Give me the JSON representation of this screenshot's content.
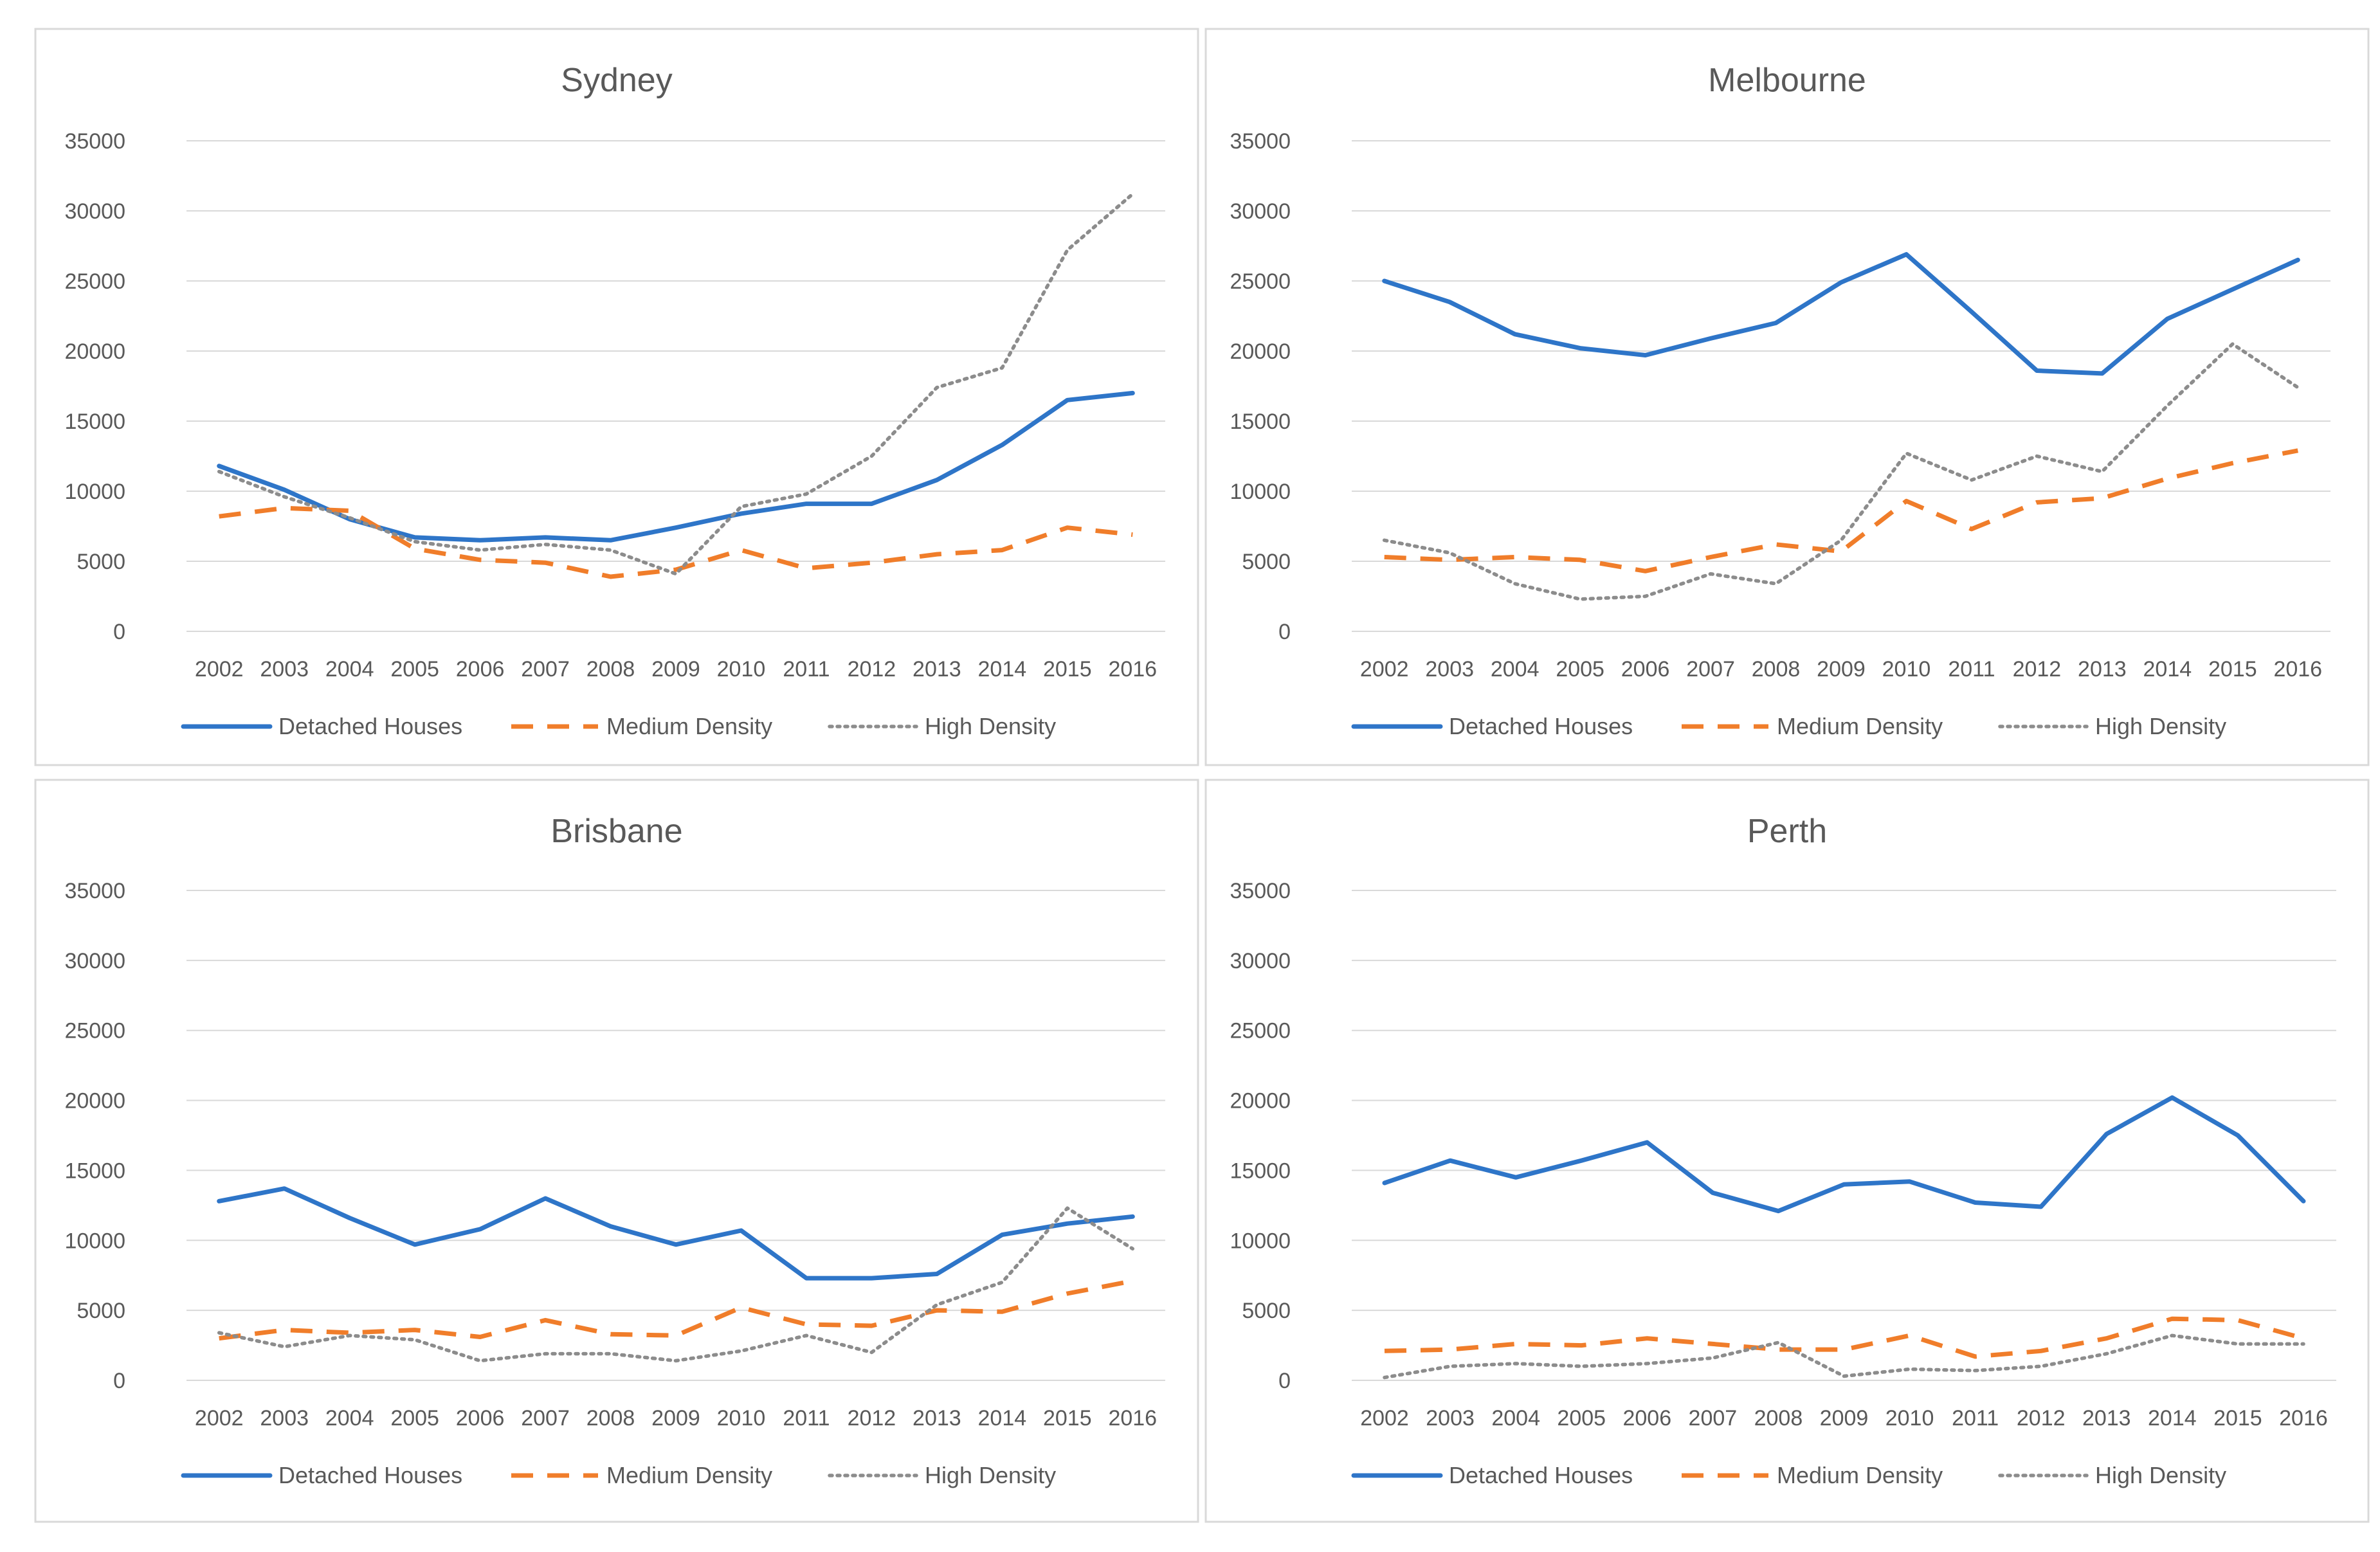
{
  "colors": {
    "detached": "#2e75c8",
    "medium": "#f07d2a",
    "high": "#8c8c8c"
  },
  "chart_data": [
    {
      "type": "line",
      "title": "Sydney",
      "categories": [
        "2002",
        "2003",
        "2004",
        "2005",
        "2006",
        "2007",
        "2008",
        "2009",
        "2010",
        "2011",
        "2012",
        "2013",
        "2014",
        "2015",
        "2016"
      ],
      "yticks": [
        "0",
        "5000",
        "10000",
        "15000",
        "20000",
        "25000",
        "30000",
        "35000"
      ],
      "ylim": [
        0,
        35000
      ],
      "legend_position": "bottom",
      "series": [
        {
          "name": "Detached Houses",
          "values": [
            11800,
            10100,
            8000,
            6700,
            6500,
            6700,
            6500,
            7400,
            8400,
            9100,
            9100,
            10800,
            13300,
            16500,
            17000
          ]
        },
        {
          "name": "Medium Density",
          "values": [
            8200,
            8800,
            8600,
            5900,
            5100,
            4900,
            3900,
            4400,
            5800,
            4500,
            4900,
            5500,
            5800,
            7400,
            6900
          ]
        },
        {
          "name": "High Density",
          "values": [
            11400,
            9600,
            8100,
            6400,
            5800,
            6200,
            5800,
            4100,
            8900,
            9800,
            12500,
            17400,
            18800,
            27200,
            31200
          ]
        }
      ]
    },
    {
      "type": "line",
      "title": "Melbourne",
      "categories": [
        "2002",
        "2003",
        "2004",
        "2005",
        "2006",
        "2007",
        "2008",
        "2009",
        "2010",
        "2011",
        "2012",
        "2013",
        "2014",
        "2015",
        "2016"
      ],
      "yticks": [
        "0",
        "5000",
        "10000",
        "15000",
        "20000",
        "25000",
        "30000",
        "35000"
      ],
      "ylim": [
        0,
        35000
      ],
      "legend_position": "bottom",
      "series": [
        {
          "name": "Detached Houses",
          "values": [
            25000,
            23500,
            21200,
            20200,
            19700,
            20900,
            22000,
            24900,
            26900,
            22800,
            18600,
            18400,
            22300,
            24400,
            26500
          ]
        },
        {
          "name": "Medium Density",
          "values": [
            5300,
            5100,
            5300,
            5100,
            4300,
            5300,
            6200,
            5700,
            9300,
            7300,
            9200,
            9500,
            10900,
            12000,
            12900
          ]
        },
        {
          "name": "High Density",
          "values": [
            6500,
            5600,
            3400,
            2300,
            2500,
            4100,
            3400,
            6500,
            12700,
            10800,
            12500,
            11400,
            16100,
            20500,
            17400
          ]
        }
      ]
    },
    {
      "type": "line",
      "title": "Brisbane",
      "categories": [
        "2002",
        "2003",
        "2004",
        "2005",
        "2006",
        "2007",
        "2008",
        "2009",
        "2010",
        "2011",
        "2012",
        "2013",
        "2014",
        "2015",
        "2016"
      ],
      "yticks": [
        "0",
        "5000",
        "10000",
        "15000",
        "20000",
        "25000",
        "30000",
        "35000"
      ],
      "ylim": [
        0,
        35000
      ],
      "legend_position": "bottom",
      "series": [
        {
          "name": "Detached Houses",
          "values": [
            12800,
            13700,
            11600,
            9700,
            10800,
            13000,
            11000,
            9700,
            10700,
            7300,
            7300,
            7600,
            10400,
            11200,
            11700
          ]
        },
        {
          "name": "Medium Density",
          "values": [
            3000,
            3600,
            3400,
            3600,
            3100,
            4300,
            3300,
            3200,
            5200,
            4000,
            3900,
            5000,
            4900,
            6200,
            7100
          ]
        },
        {
          "name": "High Density",
          "values": [
            3400,
            2400,
            3200,
            2900,
            1400,
            1900,
            1900,
            1400,
            2100,
            3200,
            2000,
            5400,
            7000,
            12300,
            9400
          ]
        }
      ]
    },
    {
      "type": "line",
      "title": "Perth",
      "categories": [
        "2002",
        "2003",
        "2004",
        "2005",
        "2006",
        "2007",
        "2008",
        "2009",
        "2010",
        "2011",
        "2012",
        "2013",
        "2014",
        "2015",
        "2016"
      ],
      "yticks": [
        "0",
        "5000",
        "10000",
        "15000",
        "20000",
        "25000",
        "30000",
        "35000"
      ],
      "ylim": [
        0,
        35000
      ],
      "legend_position": "bottom",
      "series": [
        {
          "name": "Detached Houses",
          "values": [
            14100,
            15700,
            14500,
            15700,
            17000,
            13400,
            12100,
            14000,
            14200,
            12700,
            12400,
            17600,
            20200,
            17500,
            12800
          ]
        },
        {
          "name": "Medium Density",
          "values": [
            2100,
            2200,
            2600,
            2500,
            3000,
            2600,
            2200,
            2200,
            3200,
            1700,
            2100,
            3000,
            4400,
            4300,
            3000
          ]
        },
        {
          "name": "High Density",
          "values": [
            200,
            1000,
            1200,
            1000,
            1200,
            1600,
            2700,
            300,
            800,
            700,
            1000,
            1900,
            3200,
            2600,
            2600
          ]
        }
      ]
    }
  ]
}
